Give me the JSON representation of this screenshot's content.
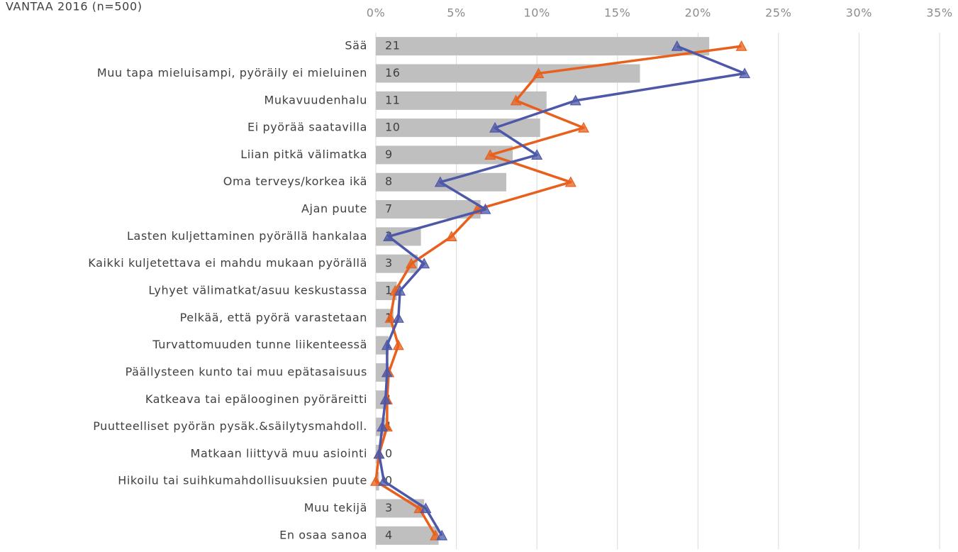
{
  "chart_data": {
    "type": "bar",
    "orientation": "horizontal",
    "title": "VANTAA 2016  (n=500)",
    "categories": [
      "Sää",
      "Muu tapa mieluisampi, pyöräily ei mieluinen",
      "Mukavuudenhalu",
      "Ei pyörää saatavilla",
      "Liian pitkä välimatka",
      "Oma terveys/korkea ikä",
      "Ajan puute",
      "Lasten kuljettaminen pyörällä hankalaa",
      "Kaikki kuljetettava ei mahdu mukaan pyörällä",
      "Lyhyet välimatkat/asuu keskustassa",
      "Pelkää, että pyörä varastetaan",
      "Turvattomuuden tunne liikenteessä",
      "Päällysteen kunto tai muu epätasaisuus",
      "Katkeava tai epälooginen pyöräreitti",
      "Puutteelliset pyörän pysäk.&säilytysmahdoll.",
      "Matkaan liittyvä muu asiointi",
      "Hikoilu tai suihkumahdollisuuksien puute",
      "Muu tekijä",
      "En osaa sanoa"
    ],
    "series": [
      {
        "type": "bar",
        "color": "#bfbfbf",
        "values": [
          20.7,
          16.4,
          10.6,
          10.2,
          8.5,
          8.1,
          6.5,
          2.8,
          2.6,
          1.3,
          1.1,
          0.8,
          0.8,
          0.7,
          0.6,
          0.2,
          0.2,
          3.0,
          3.9
        ],
        "value_labels": [
          "21",
          "16",
          "11",
          "10",
          "9",
          "8",
          "7",
          "3",
          "3",
          "1",
          "1",
          "1",
          "1",
          "1",
          "1",
          "0",
          "0",
          "3",
          "4"
        ]
      },
      {
        "type": "line",
        "color": "#e8601c",
        "values": [
          22.7,
          10.1,
          8.7,
          12.9,
          7.1,
          12.1,
          6.3,
          4.7,
          2.2,
          1.2,
          0.9,
          1.4,
          0.8,
          0.7,
          0.7,
          0.2,
          0,
          2.7,
          3.7
        ]
      },
      {
        "type": "line",
        "color": "#4e58a8",
        "values": [
          18.7,
          22.9,
          12.4,
          7.4,
          10.0,
          4.0,
          6.8,
          0.8,
          3.0,
          1.5,
          1.4,
          0.7,
          0.7,
          0.6,
          0.4,
          0.2,
          0.5,
          3.1,
          4.1
        ]
      }
    ],
    "xlim": [
      0,
      35
    ],
    "xticks": [
      {
        "value": 0,
        "label": "0%"
      },
      {
        "value": 5,
        "label": "5%"
      },
      {
        "value": 10,
        "label": "10%"
      },
      {
        "value": 15,
        "label": "15%"
      },
      {
        "value": 20,
        "label": "20%"
      },
      {
        "value": 25,
        "label": "25%"
      },
      {
        "value": 30,
        "label": "30%"
      },
      {
        "value": 35,
        "label": "35%"
      }
    ],
    "grid": true
  }
}
